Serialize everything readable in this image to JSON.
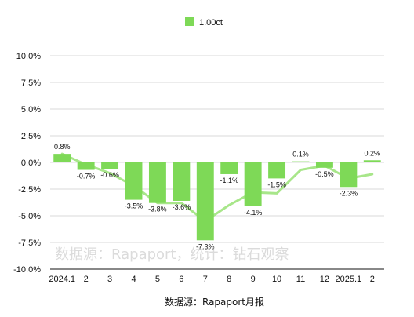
{
  "legend": {
    "label": "1.00ct",
    "color": "#7ed957"
  },
  "source": "数据源：Rapaport月报",
  "watermark": "数据源：Rapaport，统计：钻石观察",
  "chart_data": {
    "type": "bar",
    "categories": [
      "2024.1",
      "2",
      "3",
      "4",
      "5",
      "6",
      "7",
      "8",
      "9",
      "10",
      "11",
      "12",
      "2025.1",
      "2"
    ],
    "series": [
      {
        "name": "1.00ct",
        "values": [
          0.8,
          -0.7,
          -0.6,
          -3.5,
          -3.8,
          -3.6,
          -7.3,
          -1.1,
          -4.1,
          -1.5,
          0.1,
          -0.5,
          -2.3,
          0.2
        ]
      }
    ],
    "data_labels": [
      "0.8%",
      "-0.7%",
      "-0.6%",
      "-3.5%",
      "-3.8%",
      "-3.6%",
      "-7.3%",
      "-1.1%",
      "-4.1%",
      "-1.5%",
      "0.1%",
      "-0.5%",
      "-2.3%",
      "0.2%"
    ],
    "trend_line": {
      "values": [
        0.8,
        -0.2,
        -1.0,
        -2.2,
        -3.8,
        -3.8,
        -5.5,
        -4.0,
        -2.8,
        -2.9,
        -0.7,
        -0.3,
        -1.5,
        -1.1
      ],
      "color": "#a8e68a"
    },
    "ylim": [
      -10,
      10
    ],
    "y_ticks": [
      "10.0%",
      "7.5%",
      "5.0%",
      "2.5%",
      "0.0%",
      "-2.5%",
      "-5.0%",
      "-7.5%",
      "-10.0%"
    ],
    "y_tick_values": [
      10,
      7.5,
      5,
      2.5,
      0,
      -2.5,
      -5,
      -7.5,
      -10
    ],
    "grid": true,
    "legend_position": "top-center",
    "bar_color": "#7ed957"
  }
}
